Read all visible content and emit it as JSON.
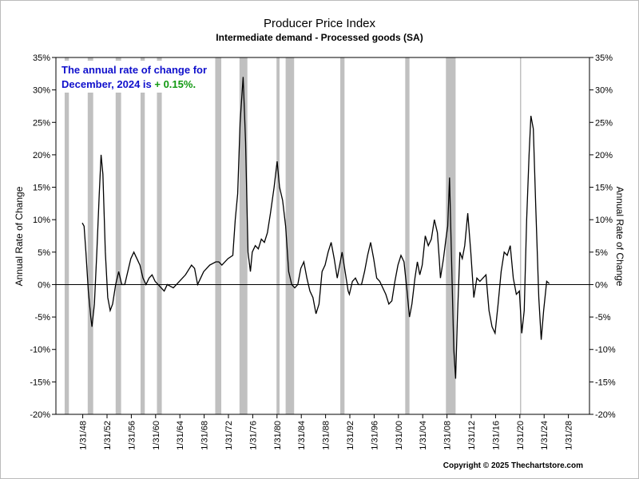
{
  "chart_data": {
    "type": "line",
    "title": "Producer Price Index",
    "subtitle": "Intermediate demand - Processed goods (SA)",
    "ylabel": "Annual Rate of Change",
    "y2label": "Annual Rate of Change",
    "annotation": [
      "The annual rate of change for",
      "December, 2024 is",
      "+ 0.15%."
    ],
    "copyright": "Copyright © 2025 Thechartstore.com",
    "xlim": [
      1943.66,
      2031.55
    ],
    "ylim": [
      -20,
      35
    ],
    "yticks": [
      {
        "value": 35,
        "label": "35%"
      },
      {
        "value": 30,
        "label": "30%"
      },
      {
        "value": 25,
        "label": "25%"
      },
      {
        "value": 20,
        "label": "20%"
      },
      {
        "value": 15,
        "label": "15%"
      },
      {
        "value": 10,
        "label": "10%"
      },
      {
        "value": 5,
        "label": "5%"
      },
      {
        "value": 0,
        "label": "0%"
      },
      {
        "value": -5,
        "label": "-5%"
      },
      {
        "value": -10,
        "label": "-10%"
      },
      {
        "value": -15,
        "label": "-15%"
      },
      {
        "value": -20,
        "label": "-20%"
      }
    ],
    "xticks": [
      {
        "value": 1948.08,
        "label": "1/31/48"
      },
      {
        "value": 1952.08,
        "label": "1/31/52"
      },
      {
        "value": 1956.08,
        "label": "1/31/56"
      },
      {
        "value": 1960.08,
        "label": "1/31/60"
      },
      {
        "value": 1964.08,
        "label": "1/31/64"
      },
      {
        "value": 1968.08,
        "label": "1/31/68"
      },
      {
        "value": 1972.08,
        "label": "1/31/72"
      },
      {
        "value": 1976.08,
        "label": "1/31/76"
      },
      {
        "value": 1980.08,
        "label": "1/31/80"
      },
      {
        "value": 1984.08,
        "label": "1/31/84"
      },
      {
        "value": 1988.08,
        "label": "1/31/88"
      },
      {
        "value": 1992.08,
        "label": "1/31/92"
      },
      {
        "value": 1996.08,
        "label": "1/31/96"
      },
      {
        "value": 2000.08,
        "label": "1/31/00"
      },
      {
        "value": 2004.08,
        "label": "1/31/04"
      },
      {
        "value": 2008.08,
        "label": "1/31/08"
      },
      {
        "value": 2012.08,
        "label": "1/31/12"
      },
      {
        "value": 2016.08,
        "label": "1/31/16"
      },
      {
        "value": 2020.08,
        "label": "1/31/20"
      },
      {
        "value": 2024.08,
        "label": "1/31/24"
      },
      {
        "value": 2028.08,
        "label": "1/31/28"
      }
    ],
    "recessions": [
      [
        1945.1,
        1945.8
      ],
      [
        1948.9,
        1949.8
      ],
      [
        1953.5,
        1954.4
      ],
      [
        1957.6,
        1958.3
      ],
      [
        1960.3,
        1961.1
      ],
      [
        1969.9,
        1970.9
      ],
      [
        1973.9,
        1975.2
      ],
      [
        1980.0,
        1980.5
      ],
      [
        1981.5,
        1982.9
      ],
      [
        1990.5,
        1991.2
      ],
      [
        2001.2,
        2001.9
      ],
      [
        2007.9,
        2009.5
      ],
      [
        2020.1,
        2020.3
      ]
    ],
    "recession_color": "#c0c0c0",
    "x": [
      1948.0,
      1948.3,
      1948.6,
      1949.0,
      1949.4,
      1949.6,
      1950.0,
      1950.4,
      1950.8,
      1951.1,
      1951.4,
      1951.8,
      1952.2,
      1952.6,
      1953.0,
      1953.5,
      1954.0,
      1954.5,
      1955.0,
      1955.5,
      1956.0,
      1956.5,
      1957.0,
      1957.5,
      1958.0,
      1958.5,
      1959.0,
      1959.5,
      1960.0,
      1960.5,
      1961.0,
      1961.5,
      1962.0,
      1963.0,
      1964.0,
      1965.0,
      1966.0,
      1966.5,
      1967.0,
      1967.5,
      1968.0,
      1969.0,
      1970.0,
      1970.5,
      1971.0,
      1972.0,
      1972.8,
      1973.2,
      1973.6,
      1974.0,
      1974.5,
      1974.9,
      1975.3,
      1975.7,
      1976.0,
      1976.5,
      1977.0,
      1977.5,
      1978.0,
      1978.5,
      1979.0,
      1979.6,
      1980.1,
      1980.5,
      1981.0,
      1981.5,
      1982.0,
      1982.5,
      1983.0,
      1983.5,
      1984.0,
      1984.5,
      1985.0,
      1985.5,
      1986.0,
      1986.5,
      1987.0,
      1987.5,
      1988.0,
      1988.5,
      1989.0,
      1989.5,
      1990.0,
      1990.8,
      1991.3,
      1991.8,
      1992.0,
      1992.5,
      1993.0,
      1993.5,
      1994.0,
      1994.5,
      1995.0,
      1995.5,
      1996.0,
      1996.5,
      1997.0,
      1997.5,
      1998.0,
      1998.5,
      1999.0,
      1999.5,
      2000.0,
      2000.5,
      2001.0,
      2001.5,
      2001.9,
      2002.3,
      2002.8,
      2003.2,
      2003.6,
      2004.0,
      2004.5,
      2005.0,
      2005.5,
      2006.0,
      2006.5,
      2006.8,
      2007.0,
      2007.5,
      2007.9,
      2008.2,
      2008.5,
      2008.8,
      2009.2,
      2009.5,
      2009.8,
      2010.2,
      2010.6,
      2011.0,
      2011.5,
      2012.0,
      2012.5,
      2013.0,
      2013.5,
      2014.0,
      2014.5,
      2015.0,
      2015.5,
      2016.0,
      2016.5,
      2017.0,
      2017.5,
      2018.0,
      2018.5,
      2019.0,
      2019.5,
      2020.0,
      2020.4,
      2020.8,
      2021.2,
      2021.6,
      2021.9,
      2022.3,
      2022.7,
      2023.2,
      2023.6,
      2024.0,
      2024.5,
      2024.92
    ],
    "series": [
      {
        "name": "Annual Rate of Change",
        "color": "#000000",
        "values": [
          9.5,
          9,
          5,
          -1,
          -5,
          -6.5,
          -3,
          5,
          14,
          20,
          17,
          5,
          -2,
          -4,
          -3,
          0,
          2,
          0,
          0,
          2,
          4,
          5,
          4,
          3,
          1,
          0,
          1,
          1.5,
          0.5,
          0,
          -0.5,
          -1,
          0,
          -0.5,
          0.5,
          1.5,
          3,
          2.5,
          0,
          1,
          2,
          3,
          3.5,
          3.5,
          3,
          4,
          4.5,
          10,
          14,
          25,
          32,
          22,
          5,
          2,
          5,
          6,
          5.5,
          7,
          6.5,
          8,
          11,
          15,
          19,
          15,
          13,
          9,
          2,
          0,
          -0.5,
          0,
          2.5,
          3.5,
          1,
          -1,
          -2,
          -4.5,
          -3,
          2,
          3,
          5,
          6.5,
          4,
          1,
          5,
          2,
          -1,
          -1.5,
          0.5,
          1,
          0,
          0,
          2,
          4.5,
          6.5,
          4,
          1,
          0.5,
          -0.5,
          -1.5,
          -3,
          -2.5,
          0.5,
          3,
          4.5,
          3.5,
          -1,
          -5,
          -3,
          1,
          3.5,
          1.5,
          3,
          7.5,
          6,
          7,
          10,
          8,
          4,
          1,
          4,
          7,
          9,
          16.5,
          5,
          -10,
          -14.5,
          -5,
          5,
          4,
          6,
          11,
          5,
          -2,
          1,
          0.5,
          1,
          1.5,
          -4,
          -6.5,
          -7.5,
          -3,
          2,
          5,
          4.5,
          6,
          1,
          -1.5,
          -1,
          -7.5,
          -4,
          10,
          20,
          26,
          24,
          12,
          -2,
          -8.5,
          -4,
          0.5,
          0.15
        ]
      }
    ]
  }
}
